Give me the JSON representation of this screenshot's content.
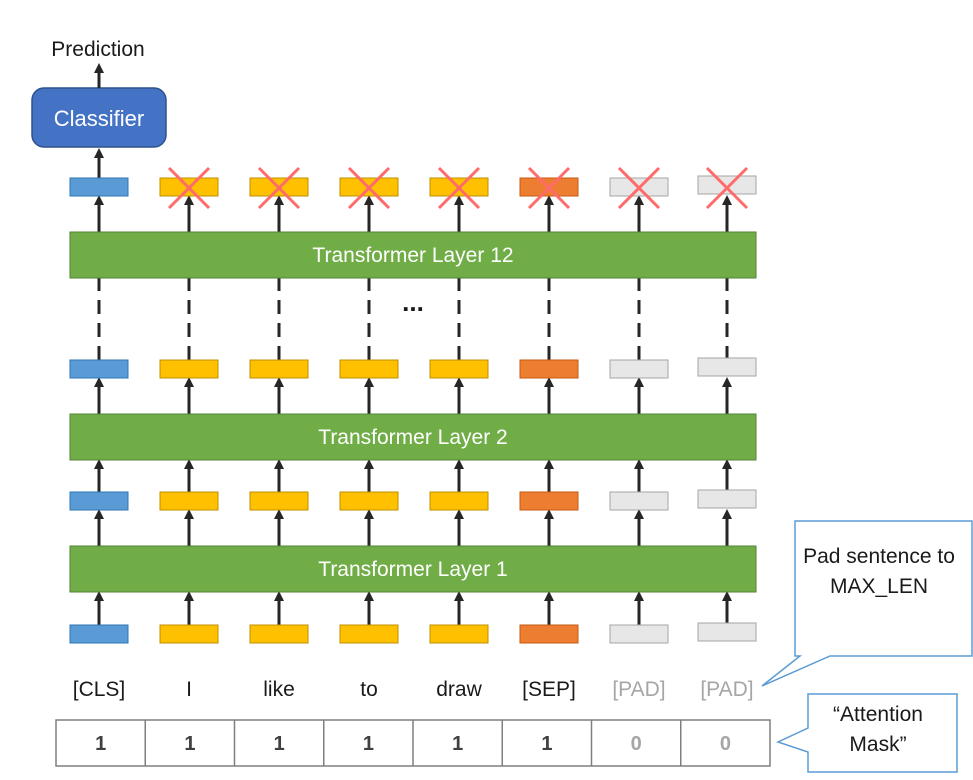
{
  "prediction_label": "Prediction",
  "classifier_label": "Classifier",
  "layers": [
    {
      "label": "Transformer Layer 12"
    },
    {
      "label": "Transformer Layer 2"
    },
    {
      "label": "Transformer Layer 1"
    }
  ],
  "ellipsis": "...",
  "tokens": [
    {
      "text": "[CLS]",
      "mask": "1",
      "kind": "cls",
      "masked_out": false
    },
    {
      "text": "I",
      "mask": "1",
      "kind": "word",
      "masked_out": true
    },
    {
      "text": "like",
      "mask": "1",
      "kind": "word",
      "masked_out": true
    },
    {
      "text": "to",
      "mask": "1",
      "kind": "word",
      "masked_out": true
    },
    {
      "text": "draw",
      "mask": "1",
      "kind": "word",
      "masked_out": true
    },
    {
      "text": "[SEP]",
      "mask": "1",
      "kind": "sep",
      "masked_out": true
    },
    {
      "text": "[PAD]",
      "mask": "0",
      "kind": "pad",
      "masked_out": true
    },
    {
      "text": "[PAD]",
      "mask": "0",
      "kind": "pad",
      "masked_out": true
    }
  ],
  "callouts": {
    "pad": "Pad sentence to MAX_LEN",
    "mask": "“Attention Mask”"
  },
  "colors": {
    "cls": "#5b9bd5",
    "word": "#ffc000",
    "sep": "#ed7d31",
    "pad": "#e7e7e7",
    "layer": "#70ad47",
    "classifier": "#4472c4",
    "cross": "#ff6b6b",
    "callout_border": "#5b9bd5",
    "text_dark": "#1a1a1a",
    "text_pad": "#a6a6a6"
  }
}
